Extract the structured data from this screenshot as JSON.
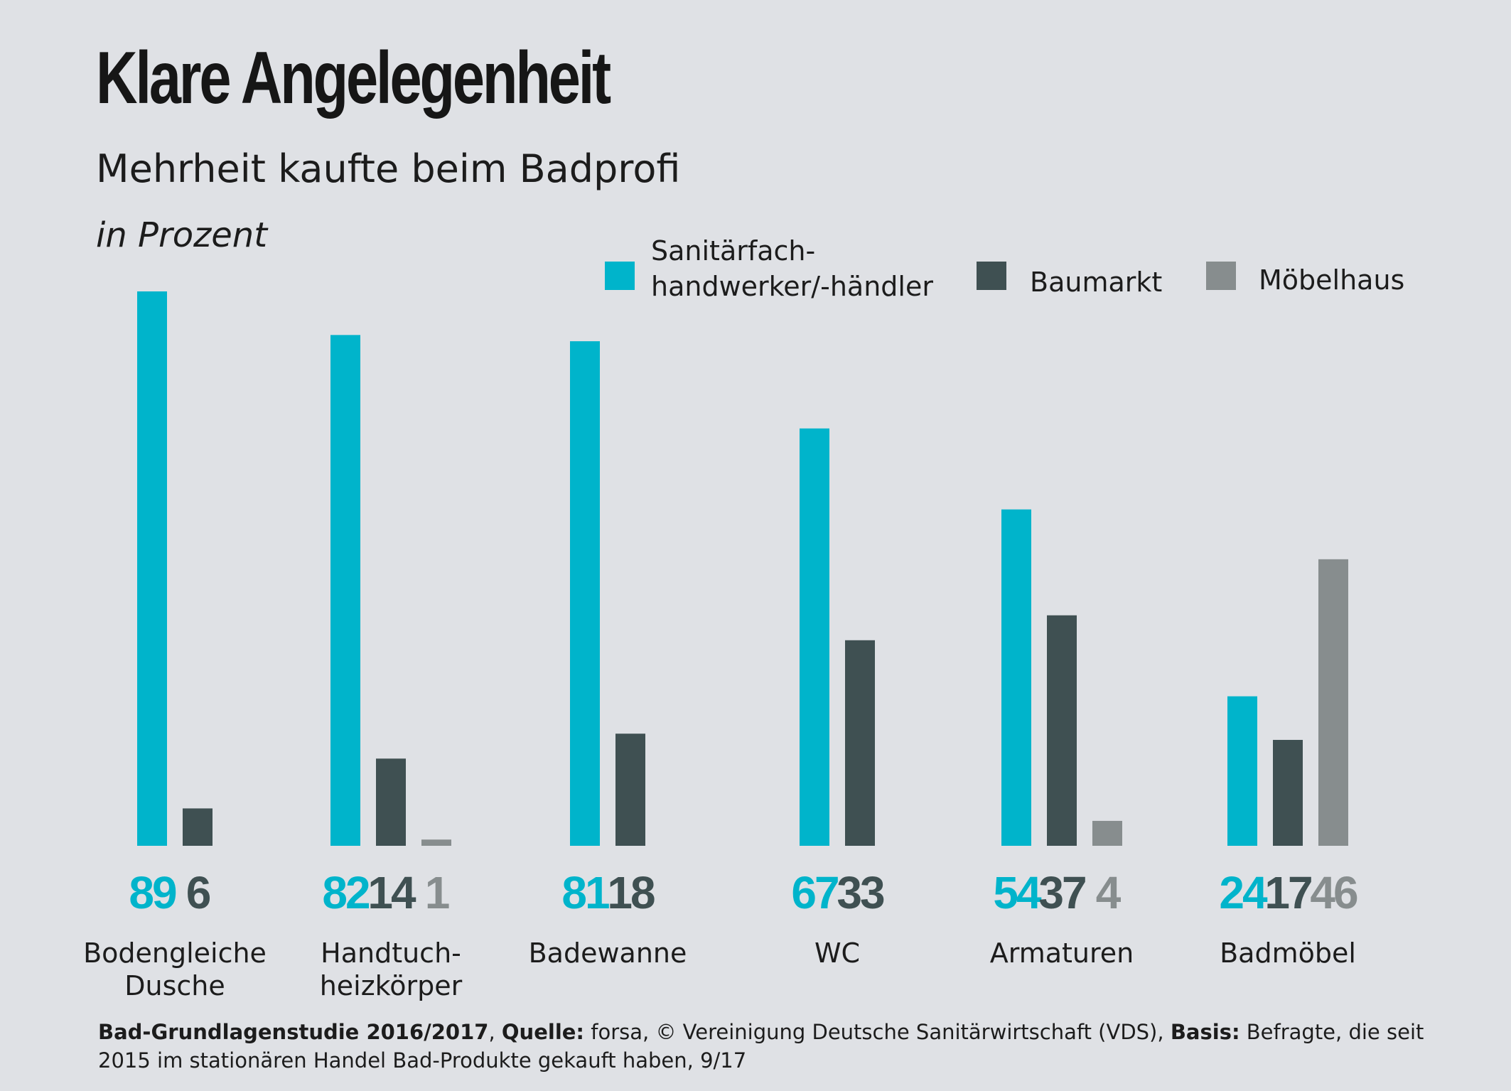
{
  "chart_data": {
    "type": "bar",
    "title": "Klare Angelegenheit",
    "subtitle": "Mehrheit kaufte beim Badprofi",
    "unit_label": "in Prozent",
    "ylim": [
      0,
      89
    ],
    "grid": false,
    "legend_position": "top-right",
    "categories": [
      {
        "label": "Bodengleiche Dusche",
        "lines": [
          "Bodengleiche",
          "Dusche"
        ]
      },
      {
        "label": "Handtuch-heizkörper",
        "lines": [
          "Handtuch-",
          "heizkörper"
        ]
      },
      {
        "label": "Badewanne",
        "lines": [
          "Badewanne"
        ]
      },
      {
        "label": "WC",
        "lines": [
          "WC"
        ]
      },
      {
        "label": "Armaturen",
        "lines": [
          "Armaturen"
        ]
      },
      {
        "label": "Badmöbel",
        "lines": [
          "Badmöbel"
        ]
      }
    ],
    "series": [
      {
        "name": "Sanitärfach-handwerker/-händler",
        "name_lines": [
          "Sanitärfach-",
          "handwerker/-händler"
        ],
        "color": "#00b4cb",
        "values": [
          89,
          82,
          81,
          67,
          54,
          24
        ]
      },
      {
        "name": "Baumarkt",
        "name_lines": [
          "Baumarkt"
        ],
        "color": "#3f5052",
        "values": [
          6,
          14,
          18,
          33,
          37,
          17
        ]
      },
      {
        "name": "Möbelhaus",
        "name_lines": [
          "Möbelhaus"
        ],
        "color": "#878d8e",
        "values": [
          null,
          1,
          null,
          null,
          4,
          46
        ]
      }
    ]
  },
  "footer": {
    "study_label": "Bad-Grundlagenstudie 2016/2017",
    "sep1": ", ",
    "source_label": "Quelle:",
    "source_text": " forsa, © Vereinigung Deutsche Sanitärwirtschaft (VDS), ",
    "basis_label": "Basis:",
    "basis_text": " Befragte, die seit 2015 im stationären Handel Bad-Produkte gekauft haben, 9/17"
  }
}
